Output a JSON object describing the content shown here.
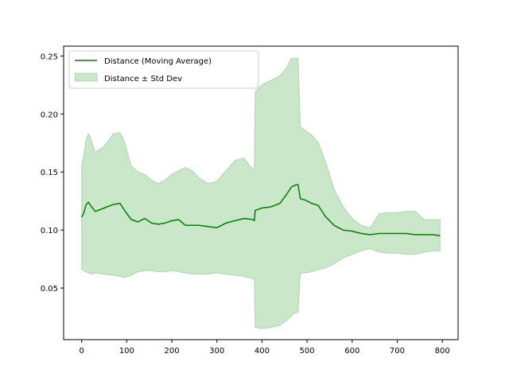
{
  "chart_data": {
    "type": "line",
    "title": "",
    "xlabel": "",
    "ylabel": "",
    "xlim": [
      -40,
      835
    ],
    "ylim": [
      0.0055,
      0.2585
    ],
    "xticks": [
      0,
      100,
      200,
      300,
      400,
      500,
      600,
      700,
      800
    ],
    "yticks": [
      0.05,
      0.1,
      0.15,
      0.2,
      0.25
    ],
    "ytick_labels": [
      "0.05",
      "0.10",
      "0.15",
      "0.20",
      "0.25"
    ],
    "grid": false,
    "legend_position": "upper-left",
    "series": [
      {
        "name": "Distance (Moving Average)",
        "kind": "line",
        "color": "#008000",
        "x": [
          0,
          5,
          10,
          15,
          20,
          30,
          50,
          70,
          85,
          95,
          110,
          125,
          140,
          155,
          170,
          185,
          200,
          215,
          230,
          245,
          260,
          280,
          300,
          320,
          340,
          360,
          380,
          383,
          385,
          400,
          420,
          440,
          455,
          465,
          475,
          480,
          485,
          495,
          510,
          525,
          540,
          560,
          580,
          600,
          620,
          640,
          660,
          680,
          700,
          720,
          740,
          760,
          780,
          795
        ],
        "y": [
          0.111,
          0.115,
          0.122,
          0.124,
          0.121,
          0.116,
          0.119,
          0.122,
          0.123,
          0.117,
          0.109,
          0.107,
          0.11,
          0.106,
          0.105,
          0.106,
          0.108,
          0.109,
          0.104,
          0.104,
          0.104,
          0.103,
          0.102,
          0.106,
          0.108,
          0.11,
          0.109,
          0.108,
          0.117,
          0.119,
          0.12,
          0.123,
          0.131,
          0.137,
          0.139,
          0.139,
          0.127,
          0.126,
          0.123,
          0.121,
          0.112,
          0.104,
          0.1,
          0.099,
          0.097,
          0.096,
          0.097,
          0.097,
          0.097,
          0.097,
          0.096,
          0.096,
          0.096,
          0.095
        ]
      },
      {
        "name": "Distance ± Std Dev",
        "kind": "band",
        "color": "#2ca02c",
        "x": [
          0,
          5,
          10,
          15,
          20,
          30,
          50,
          70,
          85,
          95,
          110,
          125,
          140,
          155,
          170,
          185,
          200,
          215,
          230,
          245,
          260,
          280,
          300,
          320,
          340,
          360,
          380,
          383,
          385,
          400,
          420,
          440,
          455,
          465,
          475,
          480,
          485,
          495,
          510,
          525,
          540,
          560,
          580,
          600,
          620,
          640,
          660,
          680,
          700,
          720,
          740,
          760,
          780,
          795
        ],
        "upper": [
          0.156,
          0.165,
          0.178,
          0.183,
          0.179,
          0.167,
          0.172,
          0.183,
          0.184,
          0.176,
          0.155,
          0.15,
          0.148,
          0.143,
          0.14,
          0.143,
          0.148,
          0.151,
          0.154,
          0.151,
          0.145,
          0.14,
          0.142,
          0.151,
          0.16,
          0.162,
          0.152,
          0.152,
          0.219,
          0.225,
          0.229,
          0.233,
          0.24,
          0.248,
          0.248,
          0.248,
          0.189,
          0.186,
          0.182,
          0.175,
          0.16,
          0.135,
          0.12,
          0.11,
          0.104,
          0.102,
          0.114,
          0.115,
          0.115,
          0.116,
          0.116,
          0.109,
          0.109,
          0.109
        ],
        "lower": [
          0.066,
          0.065,
          0.064,
          0.063,
          0.062,
          0.063,
          0.062,
          0.061,
          0.06,
          0.059,
          0.061,
          0.064,
          0.065,
          0.065,
          0.064,
          0.064,
          0.065,
          0.064,
          0.063,
          0.062,
          0.062,
          0.062,
          0.063,
          0.062,
          0.061,
          0.06,
          0.058,
          0.058,
          0.016,
          0.015,
          0.016,
          0.018,
          0.022,
          0.026,
          0.029,
          0.029,
          0.063,
          0.063,
          0.064,
          0.066,
          0.067,
          0.071,
          0.076,
          0.079,
          0.082,
          0.084,
          0.081,
          0.08,
          0.08,
          0.079,
          0.079,
          0.081,
          0.082,
          0.082
        ]
      }
    ]
  }
}
